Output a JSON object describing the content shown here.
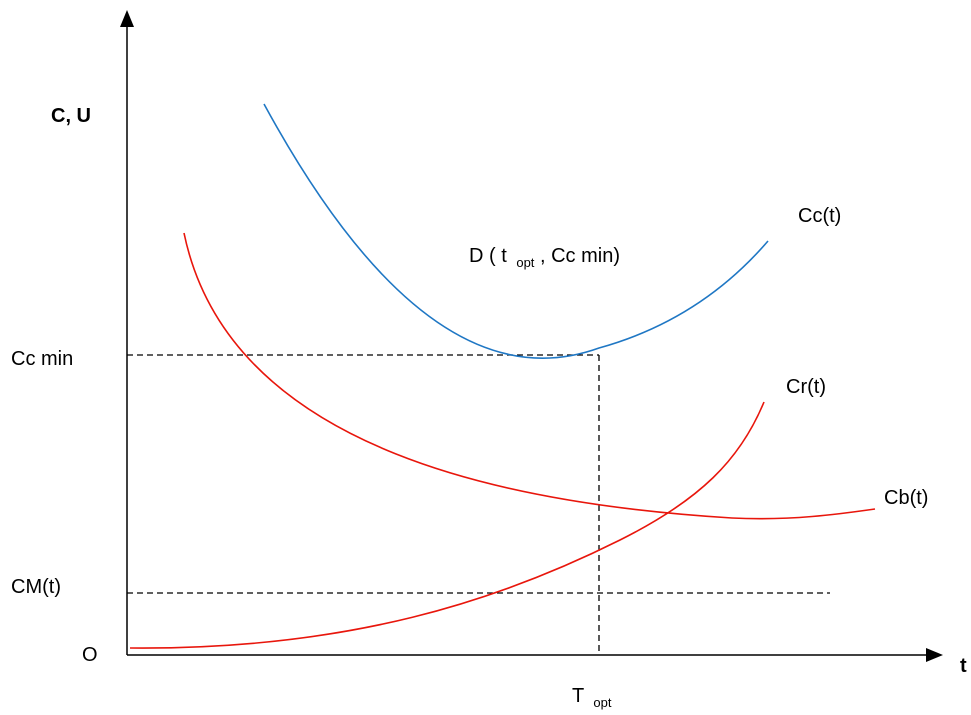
{
  "axes": {
    "y_label": "C, U",
    "x_label": "t",
    "origin_label": "O"
  },
  "levels": {
    "cc_min_label": "Cc min",
    "cm_label": "CM(t)"
  },
  "optimum": {
    "t_label_main": "T",
    "t_label_sub": "opt",
    "point_label": {
      "prefix": "D ( t",
      "sub": "opt",
      "suffix": ", Cc min)"
    }
  },
  "curves": [
    {
      "id": "cc",
      "label": "Cc(t)",
      "color": "#1f77c4"
    },
    {
      "id": "cr",
      "label": "Cr(t)",
      "color": "#e8160c"
    },
    {
      "id": "cb",
      "label": "Cb(t)",
      "color": "#e8160c"
    }
  ],
  "colors": {
    "axis": "#000000",
    "dashed": "#000000"
  }
}
